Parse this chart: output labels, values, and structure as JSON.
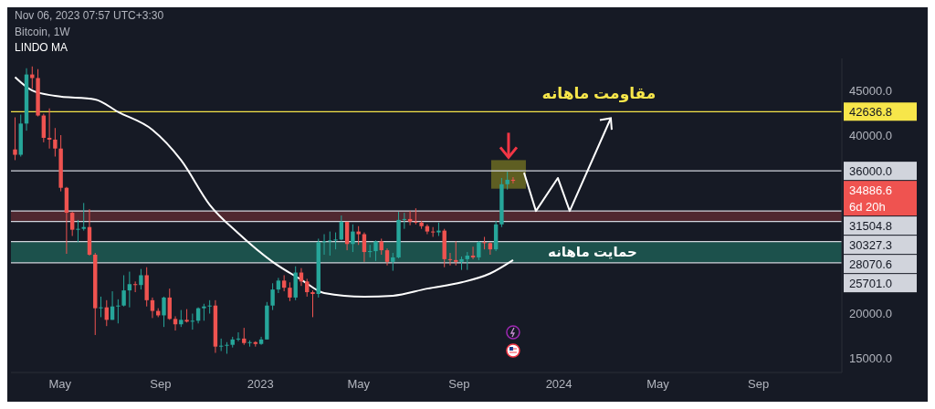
{
  "chart_data": {
    "type": "candlestick",
    "title": "Bitcoin, 1W",
    "x": [
      "2022-03-07",
      "2022-03-14",
      "2022-03-21",
      "2022-03-28",
      "2022-04-04",
      "2022-04-11",
      "2022-04-18",
      "2022-04-25",
      "2022-05-02",
      "2022-05-09",
      "2022-05-16",
      "2022-05-23",
      "2022-05-30",
      "2022-06-06",
      "2022-06-13",
      "2022-06-20",
      "2022-06-27",
      "2022-07-04",
      "2022-07-11",
      "2022-07-18",
      "2022-07-25",
      "2022-08-01",
      "2022-08-08",
      "2022-08-15",
      "2022-08-22",
      "2022-08-29",
      "2022-09-05",
      "2022-09-12",
      "2022-09-19",
      "2022-09-26",
      "2022-10-03",
      "2022-10-10",
      "2022-10-17",
      "2022-10-24",
      "2022-10-31",
      "2022-11-07",
      "2022-11-14",
      "2022-11-21",
      "2022-11-28",
      "2022-12-05",
      "2022-12-12",
      "2022-12-19",
      "2022-12-26",
      "2023-01-02",
      "2023-01-09",
      "2023-01-16",
      "2023-01-23",
      "2023-01-30",
      "2023-02-06",
      "2023-02-13",
      "2023-02-20",
      "2023-02-27",
      "2023-03-06",
      "2023-03-13",
      "2023-03-20",
      "2023-03-27",
      "2023-04-03",
      "2023-04-10",
      "2023-04-17",
      "2023-04-24",
      "2023-05-01",
      "2023-05-08",
      "2023-05-15",
      "2023-05-22",
      "2023-05-29",
      "2023-06-05",
      "2023-06-12",
      "2023-06-19",
      "2023-06-26",
      "2023-07-03",
      "2023-07-10",
      "2023-07-17",
      "2023-07-24",
      "2023-07-31",
      "2023-08-07",
      "2023-08-14",
      "2023-08-21",
      "2023-08-28",
      "2023-09-04",
      "2023-09-11",
      "2023-09-18",
      "2023-09-25",
      "2023-10-02",
      "2023-10-09",
      "2023-10-16",
      "2023-10-23",
      "2023-10-30",
      "2023-11-06"
    ],
    "ohlc": [
      [
        38400,
        42000,
        37200,
        37800
      ],
      [
        37800,
        42300,
        37600,
        41300
      ],
      [
        41300,
        47500,
        40500,
        46800
      ],
      [
        46800,
        47700,
        45200,
        46400
      ],
      [
        46400,
        47400,
        42100,
        42200
      ],
      [
        42200,
        42400,
        39200,
        39700
      ],
      [
        39700,
        43000,
        38500,
        39500
      ],
      [
        39500,
        40800,
        37600,
        38500
      ],
      [
        38500,
        40000,
        33700,
        34100
      ],
      [
        34100,
        34200,
        26700,
        31300
      ],
      [
        31300,
        31400,
        28700,
        29400
      ],
      [
        29400,
        30500,
        28000,
        29500
      ],
      [
        29500,
        32400,
        29300,
        29700
      ],
      [
        29700,
        31700,
        26500,
        26600
      ],
      [
        26600,
        26800,
        17600,
        20600
      ],
      [
        20600,
        21900,
        19600,
        20700
      ],
      [
        20700,
        21500,
        18600,
        19300
      ],
      [
        19300,
        22500,
        19300,
        20800
      ],
      [
        20800,
        21600,
        18900,
        20900
      ],
      [
        20900,
        24300,
        20800,
        22600
      ],
      [
        22600,
        24700,
        20700,
        23300
      ],
      [
        23300,
        23600,
        22400,
        23200
      ],
      [
        23200,
        25000,
        22700,
        24300
      ],
      [
        24300,
        25200,
        20800,
        21500
      ],
      [
        21500,
        21800,
        19500,
        20300
      ],
      [
        20300,
        20600,
        19600,
        19800
      ],
      [
        19800,
        21900,
        18500,
        21800
      ],
      [
        21800,
        22800,
        19300,
        19400
      ],
      [
        19400,
        19700,
        18100,
        18800
      ],
      [
        18800,
        20400,
        18500,
        19300
      ],
      [
        19300,
        20500,
        19000,
        19100
      ],
      [
        19100,
        20000,
        18200,
        19200
      ],
      [
        19200,
        20700,
        18900,
        20600
      ],
      [
        20600,
        21100,
        19200,
        20800
      ],
      [
        20800,
        21500,
        20000,
        20900
      ],
      [
        20900,
        21500,
        15600,
        16300
      ],
      [
        16300,
        17200,
        15800,
        16400
      ],
      [
        16400,
        16800,
        15500,
        16500
      ],
      [
        16500,
        17400,
        16200,
        17100
      ],
      [
        17100,
        17900,
        16900,
        17200
      ],
      [
        17200,
        18400,
        16500,
        16700
      ],
      [
        16700,
        17000,
        16300,
        16800
      ],
      [
        16800,
        16900,
        16300,
        16600
      ],
      [
        16600,
        17400,
        16500,
        17100
      ],
      [
        17100,
        21300,
        17100,
        20900
      ],
      [
        20900,
        23400,
        20400,
        22700
      ],
      [
        22700,
        24000,
        22300,
        23700
      ],
      [
        23700,
        24300,
        22500,
        22900
      ],
      [
        22900,
        23500,
        21400,
        21800
      ],
      [
        21800,
        25300,
        21500,
        24600
      ],
      [
        24600,
        25100,
        23100,
        23600
      ],
      [
        23600,
        23900,
        21900,
        22400
      ],
      [
        22400,
        22600,
        19600,
        22200
      ],
      [
        22200,
        28400,
        21800,
        28000
      ],
      [
        28000,
        28900,
        26600,
        28100
      ],
      [
        28100,
        29200,
        26500,
        28200
      ],
      [
        28200,
        29100,
        27200,
        28300
      ],
      [
        28300,
        31000,
        28200,
        30300
      ],
      [
        30300,
        30300,
        27100,
        27800
      ],
      [
        27800,
        30000,
        26900,
        29200
      ],
      [
        29200,
        29800,
        27700,
        28900
      ],
      [
        28900,
        29100,
        25800,
        26900
      ],
      [
        26900,
        27700,
        26300,
        27000
      ],
      [
        27000,
        28200,
        25900,
        28100
      ],
      [
        28100,
        28400,
        26600,
        27100
      ],
      [
        27100,
        27300,
        25400,
        25800
      ],
      [
        25800,
        26800,
        24800,
        26300
      ],
      [
        26300,
        31400,
        26200,
        30500
      ],
      [
        30500,
        31300,
        29500,
        30600
      ],
      [
        30600,
        31500,
        29900,
        30300
      ],
      [
        30300,
        31800,
        30000,
        30200
      ],
      [
        30200,
        30400,
        29500,
        29800
      ],
      [
        29800,
        30000,
        28900,
        29200
      ],
      [
        29200,
        29700,
        28600,
        29100
      ],
      [
        29100,
        30200,
        28700,
        29300
      ],
      [
        29300,
        29500,
        25200,
        26100
      ],
      [
        26100,
        26800,
        25400,
        26000
      ],
      [
        26000,
        28100,
        25400,
        25800
      ],
      [
        25800,
        26400,
        24900,
        26100
      ],
      [
        26100,
        26900,
        24900,
        26500
      ],
      [
        26500,
        27500,
        26100,
        26300
      ],
      [
        26300,
        28100,
        26000,
        28000
      ],
      [
        28000,
        28600,
        27200,
        27900
      ],
      [
        27900,
        28000,
        26600,
        27200
      ],
      [
        27200,
        30400,
        27000,
        30000
      ],
      [
        30000,
        35200,
        29700,
        34500
      ],
      [
        34500,
        35900,
        33900,
        35000
      ],
      [
        35000,
        35300,
        34600,
        34886.6
      ]
    ],
    "colors": [
      "#ef5350",
      "#26a69a",
      "#26a69a",
      "#ef5350",
      "#ef5350",
      "#ef5350",
      "#ef5350",
      "#ef5350",
      "#ef5350",
      "#ef5350",
      "#ef5350",
      "#26a69a",
      "#26a69a",
      "#ef5350",
      "#ef5350",
      "#26a69a",
      "#ef5350",
      "#26a69a",
      "#26a69a",
      "#26a69a",
      "#26a69a",
      "#ef5350",
      "#26a69a",
      "#ef5350",
      "#ef5350",
      "#ef5350",
      "#26a69a",
      "#ef5350",
      "#ef5350",
      "#26a69a",
      "#ef5350",
      "#26a69a",
      "#26a69a",
      "#26a69a",
      "#26a69a",
      "#ef5350",
      "#26a69a",
      "#26a69a",
      "#26a69a",
      "#26a69a",
      "#ef5350",
      "#26a69a",
      "#ef5350",
      "#26a69a",
      "#26a69a",
      "#26a69a",
      "#26a69a",
      "#ef5350",
      "#ef5350",
      "#26a69a",
      "#ef5350",
      "#ef5350",
      "#ef5350",
      "#26a69a",
      "#26a69a",
      "#26a69a",
      "#26a69a",
      "#26a69a",
      "#ef5350",
      "#26a69a",
      "#ef5350",
      "#ef5350",
      "#26a69a",
      "#26a69a",
      "#ef5350",
      "#ef5350",
      "#26a69a",
      "#26a69a",
      "#26a69a",
      "#ef5350",
      "#ef5350",
      "#ef5350",
      "#ef5350",
      "#ef5350",
      "#26a69a",
      "#ef5350",
      "#ef5350",
      "#ef5350",
      "#26a69a",
      "#26a69a",
      "#ef5350",
      "#26a69a",
      "#ef5350",
      "#ef5350",
      "#26a69a",
      "#26a69a",
      "#26a69a",
      "#ef5350"
    ],
    "series": [
      {
        "type": "line",
        "name": "LINDO MA",
        "color": "#ffffff",
        "x": [
          "2022-03-07",
          "2022-03-28",
          "2022-04-25",
          "2022-06-13",
          "2022-07-11",
          "2022-08-22",
          "2022-09-26",
          "2022-10-31",
          "2022-12-05",
          "2023-01-16",
          "2023-02-20",
          "2023-03-20",
          "2023-05-08",
          "2023-06-12",
          "2023-07-24",
          "2023-09-04",
          "2023-10-09",
          "2023-11-06"
        ],
        "values": [
          46500,
          45000,
          44400,
          44000,
          42600,
          40600,
          37200,
          32200,
          29000,
          25800,
          23800,
          22300,
          21900,
          22000,
          22800,
          23500,
          24500,
          26000
        ]
      }
    ],
    "xlim": [
      "2022-03-02",
      "2024-12-12"
    ],
    "xticks": [
      {
        "value": "2022-05-01",
        "label": "May"
      },
      {
        "value": "2022-09-01",
        "label": "Sep"
      },
      {
        "value": "2023-01-01",
        "label": "2023"
      },
      {
        "value": "2023-05-01",
        "label": "May"
      },
      {
        "value": "2023-09-01",
        "label": "Sep"
      },
      {
        "value": "2024-01-01",
        "label": "2024"
      },
      {
        "value": "2024-05-01",
        "label": "May"
      },
      {
        "value": "2024-09-01",
        "label": "Sep"
      }
    ],
    "ylim": [
      13400,
      48600
    ],
    "yticks": [
      {
        "value": 15000,
        "label": "15000.0"
      },
      {
        "value": 20000,
        "label": "20000.0"
      },
      {
        "value": 40000,
        "label": "40000.0"
      },
      {
        "value": 45000,
        "label": "45000.0"
      }
    ],
    "ref_lines": [
      {
        "axis": "y",
        "value": 42636.8,
        "label": "42636.8",
        "color": "#f7e64a"
      },
      {
        "axis": "y",
        "value": 36000,
        "label": "36000.0",
        "color": "#d1d4dc"
      },
      {
        "axis": "y",
        "value": 31504.8,
        "label": "31504.8",
        "color": "#d1d4dc"
      },
      {
        "axis": "y",
        "value": 30327.3,
        "label": "30327.3",
        "color": "#d1d4dc"
      },
      {
        "axis": "y",
        "value": 28070.6,
        "label": "28070.6",
        "color": "#d1d4dc"
      },
      {
        "axis": "y",
        "value": 25701.0,
        "label": "25701.0",
        "color": "#d1d4dc"
      }
    ],
    "bands": [
      {
        "axis": "y",
        "from": 30327.3,
        "to": 31504.8,
        "color": "#5b2b33"
      },
      {
        "axis": "y",
        "from": 25701.0,
        "to": 28070.6,
        "label": "حمایت ماهانه",
        "color": "#1d5c53"
      }
    ],
    "annotations": [
      "Nov 06, 2023 07:57 UTC+3:30",
      {
        "text": "مقاومت ماهانه",
        "x": "2024-02-19",
        "y": 42636.8
      },
      "34886.6",
      "6d 20h"
    ]
  }
}
